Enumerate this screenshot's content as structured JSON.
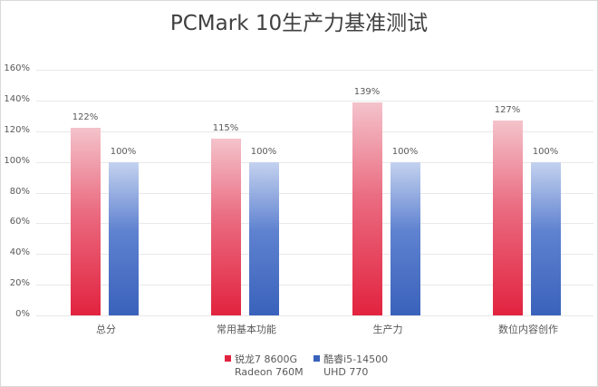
{
  "chart_data": {
    "type": "bar",
    "title": "PCMark 10生产力基准测试",
    "xlabel": "",
    "ylabel": "",
    "ylim": [
      0,
      160
    ],
    "yticks": [
      "0%",
      "20%",
      "40%",
      "60%",
      "80%",
      "100%",
      "120%",
      "140%",
      "160%"
    ],
    "grid": true,
    "legend_position": "bottom",
    "categories": [
      "总分",
      "常用基本功能",
      "生产力",
      "数位内容创作"
    ],
    "series": [
      {
        "name": "锐龙7 8600G Radeon 760M",
        "line1": "锐龙7 8600G",
        "line2": "Radeon 760M",
        "color": "#e2233f",
        "values": [
          122,
          115,
          139,
          127
        ],
        "labels": [
          "122%",
          "115%",
          "139%",
          "127%"
        ]
      },
      {
        "name": "酷睿i5-14500 UHD 770",
        "line1": "酷睿i5-14500",
        "line2": "UHD 770",
        "color": "#3a62bb",
        "values": [
          100,
          100,
          100,
          100
        ],
        "labels": [
          "100%",
          "100%",
          "100%",
          "100%"
        ]
      }
    ]
  }
}
